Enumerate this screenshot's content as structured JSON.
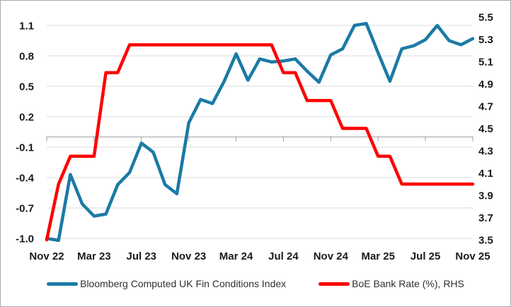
{
  "chart_data": {
    "type": "line",
    "x": [
      "Nov 22",
      "Dec 22",
      "Jan 23",
      "Feb 23",
      "Mar 23",
      "Apr 23",
      "May 23",
      "Jun 23",
      "Jul 23",
      "Aug 23",
      "Sep 23",
      "Oct 23",
      "Nov 23",
      "Dec 23",
      "Jan 24",
      "Feb 24",
      "Mar 24",
      "Apr 24",
      "May 24",
      "Jun 24",
      "Jul 24",
      "Aug 24",
      "Sep 24",
      "Oct 24",
      "Nov 24",
      "Dec 24",
      "Jan 25",
      "Feb 25",
      "Mar 25",
      "Apr 25",
      "May 25",
      "Jun 25",
      "Jul 25",
      "Aug 25",
      "Sep 25",
      "Oct 25",
      "Nov 25"
    ],
    "x_tick_labels": [
      "Nov 22",
      "Mar 23",
      "Jul 23",
      "Nov 23",
      "Mar 24",
      "Jul 24",
      "Nov 24",
      "Mar 25",
      "Jul 25",
      "Nov 25"
    ],
    "series": [
      {
        "name": "Bloomberg Computed UK Fin Conditions Index",
        "axis": "left",
        "color": "#1b7aa6",
        "values": [
          -1.0,
          -1.02,
          -0.37,
          -0.66,
          -0.78,
          -0.76,
          -0.47,
          -0.35,
          -0.06,
          -0.15,
          -0.47,
          -0.56,
          0.14,
          0.37,
          0.33,
          0.55,
          0.82,
          0.56,
          0.77,
          0.74,
          0.75,
          0.77,
          0.65,
          0.54,
          0.81,
          0.87,
          1.1,
          1.12,
          0.83,
          0.55,
          0.87,
          0.9,
          0.96,
          1.1,
          0.95,
          0.91,
          0.97
        ]
      },
      {
        "name": "BoE Bank Rate (%), RHS",
        "axis": "right",
        "color": "#fe0000",
        "values": [
          3.5,
          4.0,
          4.25,
          4.25,
          4.25,
          5.0,
          5.0,
          5.25,
          5.25,
          5.25,
          5.25,
          5.25,
          5.25,
          5.25,
          5.25,
          5.25,
          5.25,
          5.25,
          5.25,
          5.25,
          5.0,
          5.0,
          4.75,
          4.75,
          4.75,
          4.5,
          4.5,
          4.5,
          4.25,
          4.25,
          4.0,
          4.0,
          4.0,
          4.0,
          4.0,
          4.0,
          4.0
        ]
      }
    ],
    "left_axis": {
      "min": -1.0,
      "max": 1.1,
      "ticks": [
        "1.1",
        "0.8",
        "0.5",
        "0.2",
        "-0.1",
        "-0.4",
        "-0.7",
        "-1.0"
      ]
    },
    "right_axis": {
      "min": 3.5,
      "max": 5.5,
      "ticks": [
        "5.5",
        "5.3",
        "5.1",
        "4.9",
        "4.7",
        "4.5",
        "4.3",
        "4.1",
        "3.9",
        "3.7",
        "3.5"
      ]
    },
    "grid": true,
    "legend_position": "bottom",
    "title": ""
  },
  "colors": {
    "gridline": "#d9d9d9",
    "zero_axis": "#9e9e9e",
    "border": "#a9a9a9"
  }
}
